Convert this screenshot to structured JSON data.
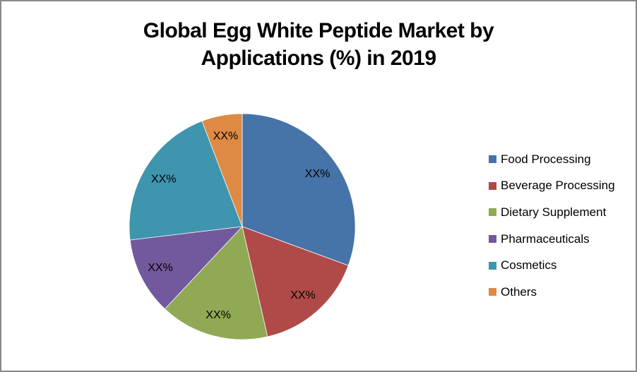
{
  "window": {
    "background": "#FFFFFF",
    "border_color": "#8A8A8A"
  },
  "title": {
    "full_text": "Global Egg White Peptide Market by Applications (%) in 2019",
    "lines": [
      "Global Egg White Peptide Market by",
      "Applications (%) in 2019"
    ],
    "color": "#000000"
  },
  "chart_data": {
    "type": "pie",
    "title": "Global Egg White Peptide Market by Applications (%) in 2019",
    "start_angle_deg": 0,
    "direction": "clockwise",
    "legend_position": "right",
    "data_labels_note": "values masked as XX% in source image; percents estimated from slice angles",
    "slices": [
      {
        "label": "Food Processing",
        "data_label": "XX%",
        "estimated_percent": 30.6,
        "color": "#4673A8"
      },
      {
        "label": "Beverage Processing",
        "data_label": "XX%",
        "estimated_percent": 15.8,
        "color": "#B04A48"
      },
      {
        "label": "Dietary Supplement",
        "data_label": "XX%",
        "estimated_percent": 15.6,
        "color": "#90A954"
      },
      {
        "label": "Pharmaceuticals",
        "data_label": "XX%",
        "estimated_percent": 11.1,
        "color": "#72599D"
      },
      {
        "label": "Cosmetics",
        "data_label": "XX%",
        "estimated_percent": 21.1,
        "color": "#3E95AD"
      },
      {
        "label": "Others",
        "data_label": "XX%",
        "estimated_percent": 5.8,
        "color": "#DF8A44"
      }
    ]
  }
}
